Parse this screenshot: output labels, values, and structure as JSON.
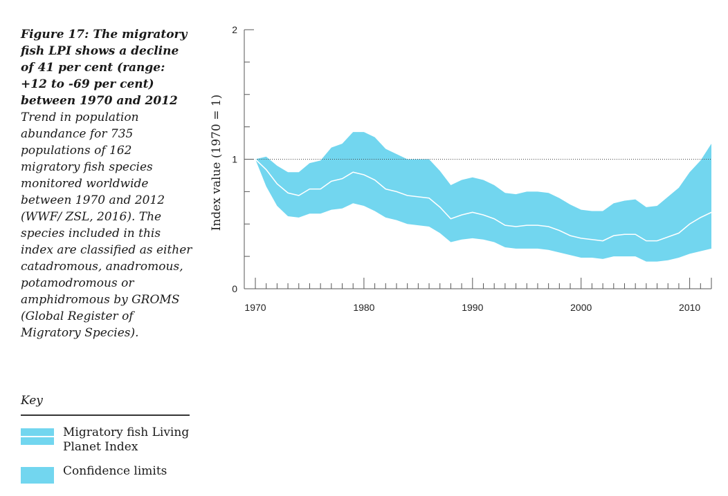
{
  "caption": {
    "title": "Figure 17: The migratory fish LPI shows a decline of 41 per cent (range: +12 to -69 per cent) between 1970 and 2012",
    "body": "Trend in population abundance for 735 populations of 162 migratory fish species monitored worldwide between 1970 and 2012 (WWF/ ZSL, 2016). The species included in this index are classified as either catadromous, anadromous, potamodromous or amphidromous by GROMS (Global Register of Migratory Species)."
  },
  "key": {
    "title": "Key",
    "items": [
      {
        "label": "Migratory fish Living Planet Index",
        "swatch": "index-line"
      },
      {
        "label": "Confidence limits",
        "swatch": "band"
      }
    ]
  },
  "colors": {
    "band": "#72d6ef",
    "index_line": "#ffffff",
    "axis": "#555555",
    "reference_line": "#444444"
  },
  "chart_data": {
    "type": "area",
    "ylabel": "Index value (1970 = 1)",
    "xlabel": "",
    "xlim": [
      1970,
      2012
    ],
    "ylim": [
      0,
      2
    ],
    "x_ticks": [
      1970,
      1980,
      1990,
      2000,
      2010
    ],
    "y_ticks": [
      0,
      1,
      2
    ],
    "reference_line": 1,
    "x": [
      1970,
      1971,
      1972,
      1973,
      1974,
      1975,
      1976,
      1977,
      1978,
      1979,
      1980,
      1981,
      1982,
      1983,
      1984,
      1985,
      1986,
      1987,
      1988,
      1989,
      1990,
      1991,
      1992,
      1993,
      1994,
      1995,
      1996,
      1997,
      1998,
      1999,
      2000,
      2001,
      2002,
      2003,
      2004,
      2005,
      2006,
      2007,
      2008,
      2009,
      2010,
      2011,
      2012
    ],
    "series": [
      {
        "name": "Migratory fish Living Planet Index",
        "values": [
          1.0,
          0.92,
          0.81,
          0.74,
          0.72,
          0.77,
          0.77,
          0.83,
          0.85,
          0.9,
          0.88,
          0.84,
          0.77,
          0.75,
          0.72,
          0.71,
          0.7,
          0.63,
          0.54,
          0.57,
          0.59,
          0.57,
          0.54,
          0.49,
          0.48,
          0.49,
          0.49,
          0.48,
          0.45,
          0.41,
          0.39,
          0.38,
          0.37,
          0.41,
          0.42,
          0.42,
          0.37,
          0.37,
          0.4,
          0.43,
          0.5,
          0.55,
          0.59
        ]
      },
      {
        "name": "Upper confidence limit",
        "values": [
          1.0,
          1.02,
          0.95,
          0.9,
          0.9,
          0.97,
          0.99,
          1.09,
          1.12,
          1.21,
          1.21,
          1.17,
          1.08,
          1.04,
          1.0,
          1.0,
          1.0,
          0.91,
          0.8,
          0.84,
          0.86,
          0.84,
          0.8,
          0.74,
          0.73,
          0.75,
          0.75,
          0.74,
          0.7,
          0.65,
          0.61,
          0.6,
          0.6,
          0.66,
          0.68,
          0.69,
          0.63,
          0.64,
          0.71,
          0.78,
          0.9,
          0.99,
          1.12
        ]
      },
      {
        "name": "Lower confidence limit",
        "values": [
          1.0,
          0.79,
          0.64,
          0.56,
          0.55,
          0.58,
          0.58,
          0.61,
          0.62,
          0.66,
          0.64,
          0.6,
          0.55,
          0.53,
          0.5,
          0.49,
          0.48,
          0.43,
          0.36,
          0.38,
          0.39,
          0.38,
          0.36,
          0.32,
          0.31,
          0.31,
          0.31,
          0.3,
          0.28,
          0.26,
          0.24,
          0.24,
          0.23,
          0.25,
          0.25,
          0.25,
          0.21,
          0.21,
          0.22,
          0.24,
          0.27,
          0.29,
          0.31
        ]
      }
    ]
  }
}
